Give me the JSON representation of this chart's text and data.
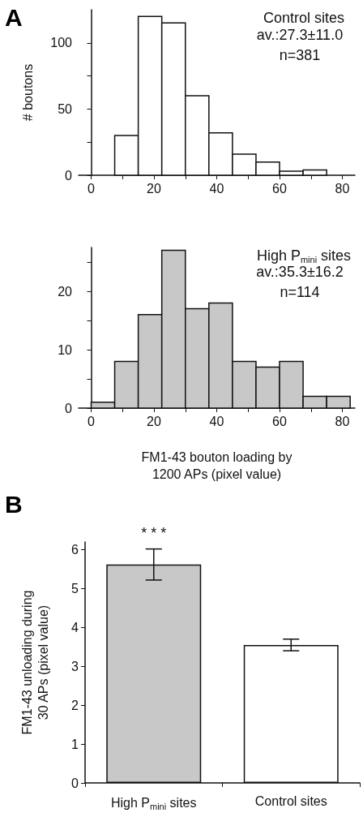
{
  "chart_data": [
    {
      "type": "histogram",
      "title": "Control sites",
      "ylabel": "# boutons",
      "annotations": [
        "A",
        "av.:27.3±11.0",
        "n=381"
      ],
      "bins": [
        7.5,
        15,
        22.5,
        30,
        37.5,
        45,
        52.5,
        60,
        67.5,
        75
      ],
      "values": [
        30,
        120,
        115,
        60,
        32,
        16,
        10,
        3,
        4
      ],
      "color": "#ffffff",
      "xlim": [
        -4,
        84
      ],
      "xticks": [
        0,
        {
          "value": 10,
          "label": null
        },
        20,
        {
          "value": 30,
          "label": null
        },
        40,
        {
          "value": 50,
          "label": null
        },
        60,
        {
          "value": 70,
          "label": null
        },
        80
      ],
      "ylim": [
        0,
        125
      ],
      "yticks": [
        0,
        {
          "value": 25,
          "label": null
        },
        50,
        {
          "value": 75,
          "label": null
        },
        100
      ],
      "grid": false
    },
    {
      "type": "histogram",
      "title": "High P$_{mini}$ sites",
      "xlabel": "FM1-43 bouton loading by 1200 APs (pixel value)",
      "annotations": [
        "av.:35.3±16.2",
        "n=114"
      ],
      "bins": [
        0,
        7.5,
        15,
        22.5,
        30,
        37.5,
        45,
        52.5,
        60,
        67.5,
        75,
        82.5
      ],
      "values": [
        1,
        8,
        16,
        27,
        17,
        18,
        8,
        7,
        8,
        2,
        2
      ],
      "color": "#c8c8c8",
      "xlim": [
        -4,
        84
      ],
      "xticks": [
        0,
        {
          "value": 10,
          "label": null
        },
        20,
        {
          "value": 30,
          "label": null
        },
        40,
        {
          "value": 50,
          "label": null
        },
        60,
        {
          "value": 70,
          "label": null
        },
        80
      ],
      "ylim": [
        0,
        27.5
      ],
      "yticks": [
        0,
        {
          "value": 5,
          "label": null
        },
        10,
        {
          "value": 15,
          "label": null
        },
        20,
        {
          "value": 25,
          "label": null
        }
      ],
      "grid": false
    },
    {
      "type": "bar",
      "ylabel": "FM1-43 unloading during 30 APs (pixel value)",
      "annotations": [
        "B",
        "* * *"
      ],
      "categories": [
        "High P$_{mini}$ sites",
        "Control sites"
      ],
      "values": [
        5.62,
        3.55
      ],
      "errors": [
        0.4,
        0.15
      ],
      "colors": [
        "#c8c8c8",
        "#ffffff"
      ],
      "ylim": [
        0,
        6.2
      ],
      "yticks": [
        0,
        1,
        2,
        3,
        4,
        5,
        6
      ],
      "grid": false
    }
  ]
}
